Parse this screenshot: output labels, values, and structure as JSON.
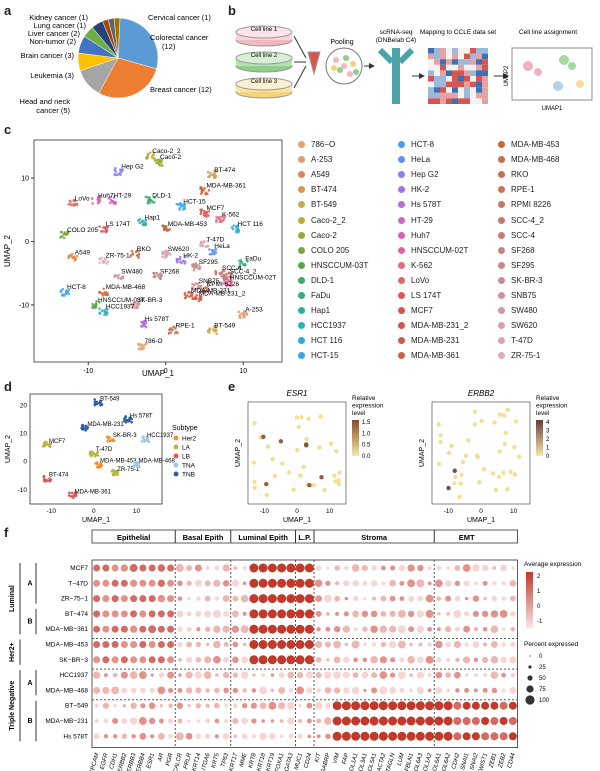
{
  "panels": [
    "a",
    "b",
    "c",
    "d",
    "e",
    "f"
  ],
  "panel_a": {
    "chart_data": {
      "type": "pie",
      "categories": [
        "Colorectal cancer",
        "Breast cancer",
        "Head and neck cancer",
        "Leukemia",
        "Brain cancer",
        "Non-tumor",
        "Liver cancer",
        "Lung cancer",
        "Kidney cancer",
        "Cervical cancer"
      ],
      "values": [
        12,
        12,
        5,
        3,
        3,
        2,
        2,
        1,
        1,
        1
      ],
      "labels": [
        "Colorectal cancer (12)",
        "Breast cancer (12)",
        "Head and neck cancer (5)",
        "Leukemia (3)",
        "Brain cancer (3)",
        "Non-tumor (2)",
        "Liver cancer (2)",
        "Lung cancer (1)",
        "Kidney cancer (1)",
        "Cervical cancer (1)"
      ],
      "colors": [
        "#5b9bd5",
        "#ed7d31",
        "#a5a5a5",
        "#ffc000",
        "#4472c4",
        "#70ad47",
        "#264478",
        "#9e480e",
        "#636363",
        "#997300"
      ]
    }
  },
  "panel_b": {
    "cells": [
      "Cell line 1",
      "Cell line 2",
      "Cell line 3"
    ],
    "pooling": "Pooling",
    "seq": "scRNA-seq",
    "seq_sub": "(DNBelab C4)",
    "mapping": "Mapping to CCLE data set",
    "assignment": "Cell line assignment",
    "umap1": "UMAP1",
    "umap2": "UMAP2"
  },
  "panel_c": {
    "xlabel": "UMAP_1",
    "ylabel": "UMAP_2",
    "xticks": [
      "-10",
      "0",
      "10"
    ],
    "yticks": [
      "10",
      "0",
      "-10"
    ],
    "legend": [
      {
        "name": "786−O",
        "color": "#e8a06a"
      },
      {
        "name": "A-253",
        "color": "#e39a6e"
      },
      {
        "name": "A549",
        "color": "#d98a50"
      },
      {
        "name": "BT-474",
        "color": "#d39a56"
      },
      {
        "name": "BT-549",
        "color": "#c8aa48"
      },
      {
        "name": "Caco-2_2",
        "color": "#b5b040"
      },
      {
        "name": "Caco-2",
        "color": "#97a93e"
      },
      {
        "name": "COLO 205",
        "color": "#78a542"
      },
      {
        "name": "HNSCCUM-03T",
        "color": "#5aa64e"
      },
      {
        "name": "DLD-1",
        "color": "#3ea96a"
      },
      {
        "name": "FaDu",
        "color": "#36ac88"
      },
      {
        "name": "Hap1",
        "color": "#2cafa3"
      },
      {
        "name": "HCC1937",
        "color": "#2bb0bd"
      },
      {
        "name": "HCT 116",
        "color": "#2aaed3"
      },
      {
        "name": "HCT-15",
        "color": "#35a7e4"
      },
      {
        "name": "HCT-8",
        "color": "#4b9cec"
      },
      {
        "name": "HeLa",
        "color": "#678ff0"
      },
      {
        "name": "Hep G2",
        "color": "#8581ef"
      },
      {
        "name": "HK-2",
        "color": "#a074e6"
      },
      {
        "name": "Hs 578T",
        "color": "#b96bd8"
      },
      {
        "name": "HT-29",
        "color": "#cc66c6"
      },
      {
        "name": "Huh7",
        "color": "#da63b0"
      },
      {
        "name": "HNSCCUM-02T",
        "color": "#e36497"
      },
      {
        "name": "K-562",
        "color": "#e76b7d"
      },
      {
        "name": "LoVo",
        "color": "#e26865"
      },
      {
        "name": "LS 174T",
        "color": "#dc5a58"
      },
      {
        "name": "MCF7",
        "color": "#d9534f"
      },
      {
        "name": "MDA-MB-231_2",
        "color": "#d4574a"
      },
      {
        "name": "MDA-MB-231",
        "color": "#cf5d45"
      },
      {
        "name": "MDA-MB-361",
        "color": "#cb6342"
      },
      {
        "name": "MDA-MB-453",
        "color": "#c6683f"
      },
      {
        "name": "MDA-MB-468",
        "color": "#c86d45"
      },
      {
        "name": "RKO",
        "color": "#c7714d"
      },
      {
        "name": "RPE-1",
        "color": "#c6755a"
      },
      {
        "name": "RPMI 8226",
        "color": "#c47866"
      },
      {
        "name": "SCC-4_2",
        "color": "#c27a71"
      },
      {
        "name": "SCC-4",
        "color": "#c27e7b"
      },
      {
        "name": "SF268",
        "color": "#c48385"
      },
      {
        "name": "SF295",
        "color": "#c6888d"
      },
      {
        "name": "SK-BR-3",
        "color": "#c98d95"
      },
      {
        "name": "SNB75",
        "color": "#cd939d"
      },
      {
        "name": "SW480",
        "color": "#d199a5"
      },
      {
        "name": "SW620",
        "color": "#d59fad"
      },
      {
        "name": "T-47D",
        "color": "#d9a5b4"
      },
      {
        "name": "ZR-75-1",
        "color": "#ddabbb"
      }
    ],
    "clusters": [
      {
        "label": "Hep G2",
        "x": -6,
        "y": 11
      },
      {
        "label": "Caco-2_2",
        "x": -2,
        "y": 13.5
      },
      {
        "label": "Caco-2",
        "x": -1,
        "y": 12.5
      },
      {
        "label": "BT-474",
        "x": 6,
        "y": 10.5
      },
      {
        "label": "MDA-MB-361",
        "x": 5,
        "y": 8
      },
      {
        "label": "DLD-1",
        "x": -2,
        "y": 6.5
      },
      {
        "label": "HT-29",
        "x": -7,
        "y": 6.5
      },
      {
        "label": "HCT-15",
        "x": 2,
        "y": 5.5
      },
      {
        "label": "LoVo",
        "x": -12,
        "y": 6
      },
      {
        "label": "Huh7",
        "x": -9,
        "y": 6.5
      },
      {
        "label": "MCF7",
        "x": 5,
        "y": 4.5
      },
      {
        "label": "COLO 205",
        "x": -13,
        "y": 1
      },
      {
        "label": "LS 174T",
        "x": -8,
        "y": 2
      },
      {
        "label": "Hap1",
        "x": -3,
        "y": 3
      },
      {
        "label": "MDA-MB-453",
        "x": 0,
        "y": 2
      },
      {
        "label": "K-562",
        "x": 7,
        "y": 3.5
      },
      {
        "label": "HCT 116",
        "x": 9,
        "y": 2
      },
      {
        "label": "A549",
        "x": -12,
        "y": -2.5
      },
      {
        "label": "ZR-75-1",
        "x": -8,
        "y": -3
      },
      {
        "label": "RKO",
        "x": -4,
        "y": -2
      },
      {
        "label": "SW620",
        "x": 0,
        "y": -2
      },
      {
        "label": "T-47D",
        "x": 5,
        "y": -0.5
      },
      {
        "label": "HeLa",
        "x": 6,
        "y": -1.5
      },
      {
        "label": "HK-2",
        "x": 2,
        "y": -3
      },
      {
        "label": "SF295",
        "x": 4,
        "y": -4
      },
      {
        "label": "FaDu",
        "x": 10,
        "y": -3.5
      },
      {
        "label": "SW480",
        "x": -6,
        "y": -5.5
      },
      {
        "label": "SF268",
        "x": -1,
        "y": -5.5
      },
      {
        "label": "SCC-4",
        "x": 7,
        "y": -5
      },
      {
        "label": "SCC-4_2",
        "x": 8,
        "y": -5.5
      },
      {
        "label": "HNSCCUM-02T",
        "x": 8,
        "y": -6.5
      },
      {
        "label": "RPMI 8226",
        "x": 5,
        "y": -7.5
      },
      {
        "label": "SNB75",
        "x": 4,
        "y": -7
      },
      {
        "label": "HCT-8",
        "x": -13,
        "y": -8
      },
      {
        "label": "MDA-MB-468",
        "x": -8,
        "y": -8
      },
      {
        "label": "MDA-MB-231",
        "x": 3,
        "y": -8.5
      },
      {
        "label": "MDA-MB-231_2",
        "x": 4,
        "y": -9
      },
      {
        "label": "HNSCCUM-03T",
        "x": -9,
        "y": -10
      },
      {
        "label": "SK-BR-3",
        "x": -4,
        "y": -10
      },
      {
        "label": "HCC1937",
        "x": -8,
        "y": -11
      },
      {
        "label": "A-253",
        "x": 10,
        "y": -11.5
      },
      {
        "label": "Hs 578T",
        "x": -3,
        "y": -13
      },
      {
        "label": "RPE-1",
        "x": 1,
        "y": -14
      },
      {
        "label": "BT-549",
        "x": 6,
        "y": -14
      },
      {
        "label": "786-O",
        "x": -3,
        "y": -16.5
      }
    ]
  },
  "panel_d": {
    "xlabel": "UMAP_1",
    "ylabel": "UMAP_2",
    "xticks": [
      "-10",
      "0",
      "10"
    ],
    "yticks": [
      "20",
      "10",
      "0",
      "-10"
    ],
    "legend_title": "Subtype",
    "legend": [
      {
        "name": "Her2",
        "color": "#f28e2b"
      },
      {
        "name": "LA",
        "color": "#b5b840"
      },
      {
        "name": "LB",
        "color": "#e15759"
      },
      {
        "name": "TNA",
        "color": "#9fc6e6"
      },
      {
        "name": "TNB",
        "color": "#2f5ea8"
      }
    ],
    "clusters": [
      {
        "label": "BT-549",
        "x": 1,
        "y": 21
      },
      {
        "label": "Hs 578T",
        "x": 8,
        "y": 15
      },
      {
        "label": "MDA-MB-231",
        "x": -2,
        "y": 12
      },
      {
        "label": "SK-BR-3",
        "x": 4,
        "y": 8
      },
      {
        "label": "HCC1937",
        "x": 12,
        "y": 8
      },
      {
        "label": "MCF7",
        "x": -11,
        "y": 6
      },
      {
        "label": "T-47D",
        "x": 0,
        "y": 3
      },
      {
        "label": "ZR-75-1",
        "x": 5,
        "y": -4
      },
      {
        "label": "MDA-MB-453",
        "x": 1,
        "y": -1
      },
      {
        "label": "MDA-MB-468",
        "x": 10,
        "y": -1
      },
      {
        "label": "BT-474",
        "x": -11,
        "y": -6
      },
      {
        "label": "MDA-MB-361",
        "x": -5,
        "y": -12
      }
    ]
  },
  "panel_e": {
    "plots": [
      {
        "gene": "ESR1",
        "legend_title": "Relative expression level",
        "ticks": [
          "1.5",
          "1.0",
          "0.5",
          "0.0"
        ]
      },
      {
        "gene": "ERBB2",
        "legend_title": "Relative expression level",
        "ticks": [
          "4",
          "3",
          "2",
          "1",
          "0"
        ]
      }
    ],
    "xlabel": "UMAP_1",
    "ylabel": "UMAP_2",
    "xticks": [
      "-10",
      "0",
      "10"
    ]
  },
  "panel_f": {
    "groups": [
      {
        "name": "Epithelial",
        "n": 9
      },
      {
        "name": "Basal Epith",
        "n": 6
      },
      {
        "name": "Luminal Epith",
        "n": 7
      },
      {
        "name": "L.P.",
        "n": 2
      },
      {
        "name": "Stroma",
        "n": 13
      },
      {
        "name": "EMT",
        "n": 7
      }
    ],
    "genes": [
      "EPCAM",
      "EGFR",
      "CDH1",
      "ERBB2",
      "ERBB3",
      "ERBB4",
      "ESR1",
      "AR",
      "PGR",
      "CALCR",
      "PRLR",
      "KRT14",
      "ITGA6",
      "KRT5",
      "TP63",
      "KRT17",
      "MME",
      "KRT8",
      "KRT18",
      "KRT19",
      "FOXA1",
      "GATA3",
      "MUC1",
      "CD24",
      "KIT",
      "GABRP",
      "VIM",
      "FAP",
      "COL1A1",
      "COL3A1",
      "COL5A1",
      "ACTA2",
      "TAGLN",
      "LUM",
      "FBLN1",
      "COL6A3",
      "COL1A2",
      "COL6A1",
      "COL6A2",
      "CDH2",
      "SNAI1",
      "SNAI2",
      "TWIST1",
      "ZEB1",
      "ZEB2",
      "CD44"
    ],
    "rows": [
      "MCF7",
      "T−47D",
      "ZR−75−1",
      "BT−474",
      "MDA−MB−361",
      "MDA−MB−453",
      "SK−BR−3",
      "HCC1937",
      "MDA−MB−468",
      "BT−549",
      "MDA−MB−231",
      "Hs 578T"
    ],
    "row_groups": [
      {
        "name": "Luminal",
        "sub": [
          "A",
          "B"
        ]
      },
      {
        "name": "Her2+",
        "sub": []
      },
      {
        "name": "Triple Negative",
        "sub": [
          "A",
          "B"
        ]
      }
    ],
    "colorbar_title": "Average expression",
    "colorbar_ticks": [
      "2",
      "1",
      "0",
      "-1"
    ],
    "size_title": "Percent expressed",
    "size_ticks": [
      "0",
      "25",
      "50",
      "75",
      "100"
    ]
  }
}
